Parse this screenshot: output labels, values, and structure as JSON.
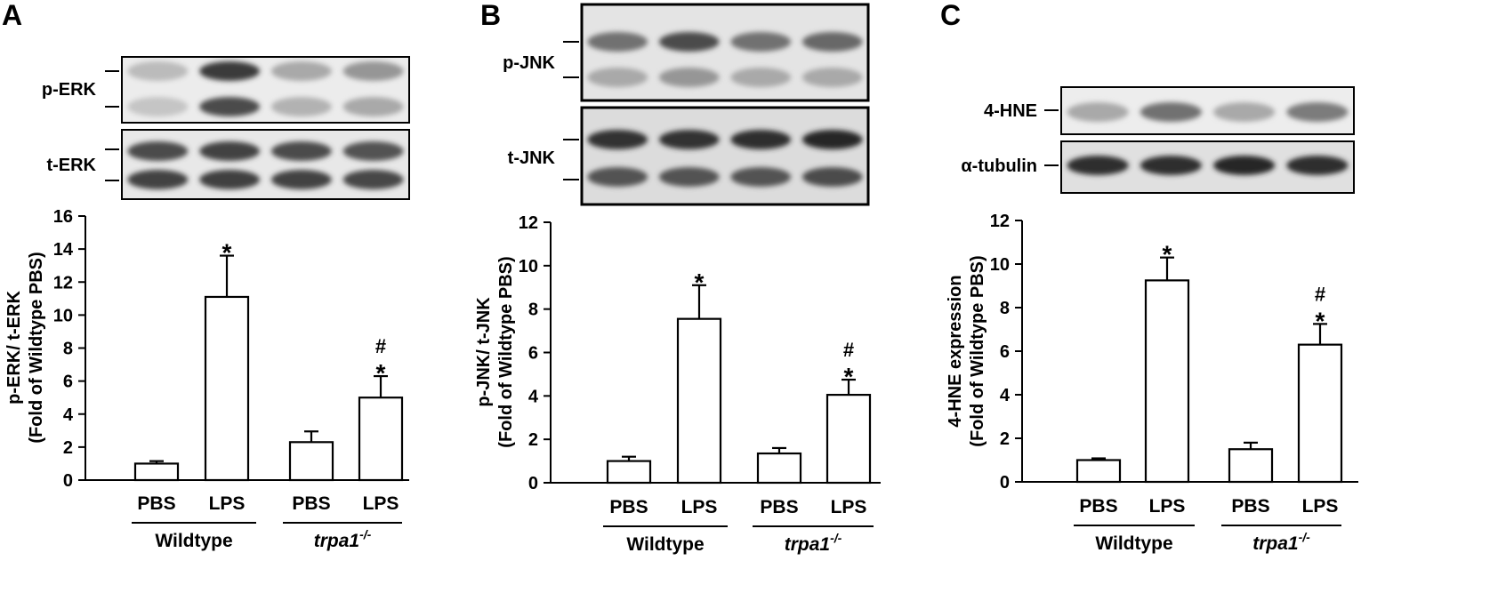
{
  "chart_data": [
    {
      "type": "bar",
      "panel": "A",
      "blots": [
        {
          "label": "p-ERK",
          "bands": [
            [
              0.15,
              0.1
            ],
            [
              0.85,
              0.75
            ],
            [
              0.25,
              0.2
            ],
            [
              0.35,
              0.25
            ]
          ]
        },
        {
          "label": "t-ERK",
          "bands": [
            [
              0.75,
              0.8
            ],
            [
              0.8,
              0.82
            ],
            [
              0.75,
              0.8
            ],
            [
              0.72,
              0.78
            ]
          ]
        }
      ],
      "categories": [
        "PBS",
        "LPS",
        "PBS",
        "LPS"
      ],
      "groups": [
        {
          "name": "Wildtype",
          "italic": false,
          "sup": ""
        },
        {
          "name": "trpa1",
          "italic": true,
          "sup": "-/-"
        }
      ],
      "values": [
        1.0,
        11.1,
        2.3,
        5.0
      ],
      "errors": [
        0.15,
        2.5,
        0.65,
        1.3
      ],
      "significance": [
        "",
        "*",
        "",
        "#*"
      ],
      "ylabel": [
        "p-ERK/ t-ERK",
        "(Fold of Wildtype PBS)"
      ],
      "ylim": [
        0,
        16
      ],
      "yticks": [
        0,
        2,
        4,
        6,
        8,
        10,
        12,
        14,
        16
      ]
    },
    {
      "type": "bar",
      "panel": "B",
      "blots": [
        {
          "label": "p-JNK",
          "bands": [
            [
              0.55,
              0.25
            ],
            [
              0.75,
              0.35
            ],
            [
              0.55,
              0.25
            ],
            [
              0.6,
              0.25
            ]
          ]
        },
        {
          "label": "t-JNK",
          "bands": [
            [
              0.9,
              0.72
            ],
            [
              0.9,
              0.72
            ],
            [
              0.92,
              0.72
            ],
            [
              0.95,
              0.75
            ]
          ]
        }
      ],
      "categories": [
        "PBS",
        "LPS",
        "PBS",
        "LPS"
      ],
      "groups": [
        {
          "name": "Wildtype",
          "italic": false,
          "sup": ""
        },
        {
          "name": "trpa1",
          "italic": true,
          "sup": "-/-"
        }
      ],
      "values": [
        1.0,
        7.55,
        1.35,
        4.05
      ],
      "errors": [
        0.2,
        1.55,
        0.25,
        0.7
      ],
      "significance": [
        "",
        "*",
        "",
        "#*"
      ],
      "ylabel": [
        "p-JNK/ t-JNK",
        "(Fold of Wildtype PBS)"
      ],
      "ylim": [
        0,
        12
      ],
      "yticks": [
        0,
        2,
        4,
        6,
        8,
        10,
        12
      ]
    },
    {
      "type": "bar",
      "panel": "C",
      "blots": [
        {
          "label": "4-HNE",
          "bands": [
            [
              0.25
            ],
            [
              0.55
            ],
            [
              0.25
            ],
            [
              0.5
            ]
          ]
        },
        {
          "label": "α-tubulin",
          "bands": [
            [
              0.92
            ],
            [
              0.92
            ],
            [
              0.95
            ],
            [
              0.92
            ]
          ]
        }
      ],
      "categories": [
        "PBS",
        "LPS",
        "PBS",
        "LPS"
      ],
      "groups": [
        {
          "name": "Wildtype",
          "italic": false,
          "sup": ""
        },
        {
          "name": "trpa1",
          "italic": true,
          "sup": "-/-"
        }
      ],
      "values": [
        1.0,
        9.25,
        1.5,
        6.3
      ],
      "errors": [
        0.08,
        1.05,
        0.3,
        0.95
      ],
      "significance": [
        "",
        "*",
        "",
        "#*"
      ],
      "ylabel": [
        "4-HNE expression",
        "(Fold of Wildtype PBS)"
      ],
      "ylim": [
        0,
        12
      ],
      "yticks": [
        0,
        2,
        4,
        6,
        8,
        10,
        12
      ]
    }
  ]
}
